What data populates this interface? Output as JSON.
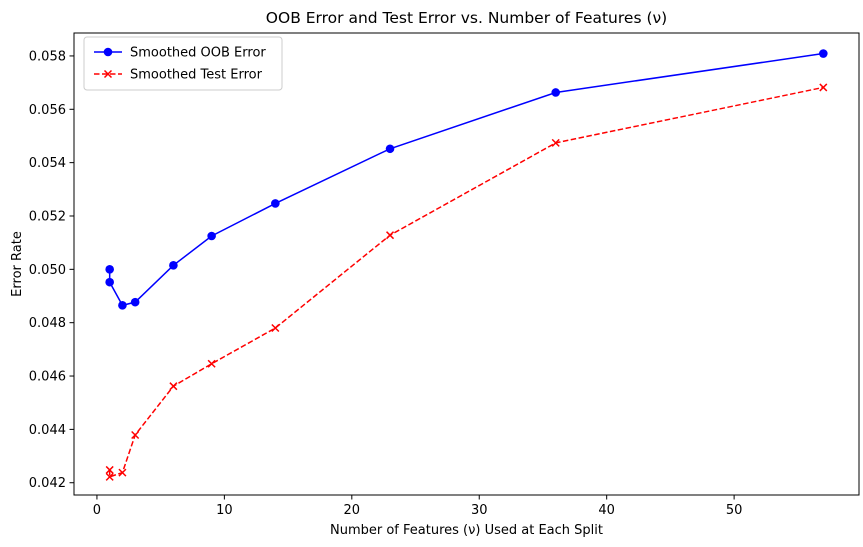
{
  "chart_data": {
    "type": "line",
    "title": "OOB Error and Test Error vs. Number of Features (ν)",
    "xlabel": "Number of Features (ν) Used at Each Split",
    "ylabel": "Error Rate",
    "xlim": [
      -1.8,
      59.8
    ],
    "ylim": [
      0.04154,
      0.05886
    ],
    "xticks": [
      0,
      10,
      20,
      30,
      40,
      50
    ],
    "xtick_labels": [
      "0",
      "10",
      "20",
      "30",
      "40",
      "50"
    ],
    "yticks": [
      0.042,
      0.044,
      0.046,
      0.048,
      0.05,
      0.052,
      0.054,
      0.056,
      0.058
    ],
    "ytick_labels": [
      "0.042",
      "0.044",
      "0.046",
      "0.048",
      "0.050",
      "0.052",
      "0.054",
      "0.056",
      "0.058"
    ],
    "grid": false,
    "legend_position": "top-left",
    "series": [
      {
        "name": "Smoothed OOB Error",
        "color": "#0000ff",
        "marker": "circle",
        "linestyle": "solid",
        "x": [
          1,
          1,
          2,
          3,
          6,
          9,
          14,
          23,
          36,
          57
        ],
        "y": [
          0.05,
          0.04952,
          0.04865,
          0.04877,
          0.05015,
          0.05125,
          0.05247,
          0.05452,
          0.05663,
          0.05809
        ]
      },
      {
        "name": "Smoothed Test Error",
        "color": "#ff0000",
        "marker": "x",
        "linestyle": "dashed",
        "x": [
          1,
          1,
          2,
          3,
          6,
          9,
          14,
          23,
          36,
          57
        ],
        "y": [
          0.04248,
          0.04222,
          0.04238,
          0.04379,
          0.04562,
          0.04646,
          0.0478,
          0.05128,
          0.05474,
          0.05682
        ]
      }
    ]
  }
}
